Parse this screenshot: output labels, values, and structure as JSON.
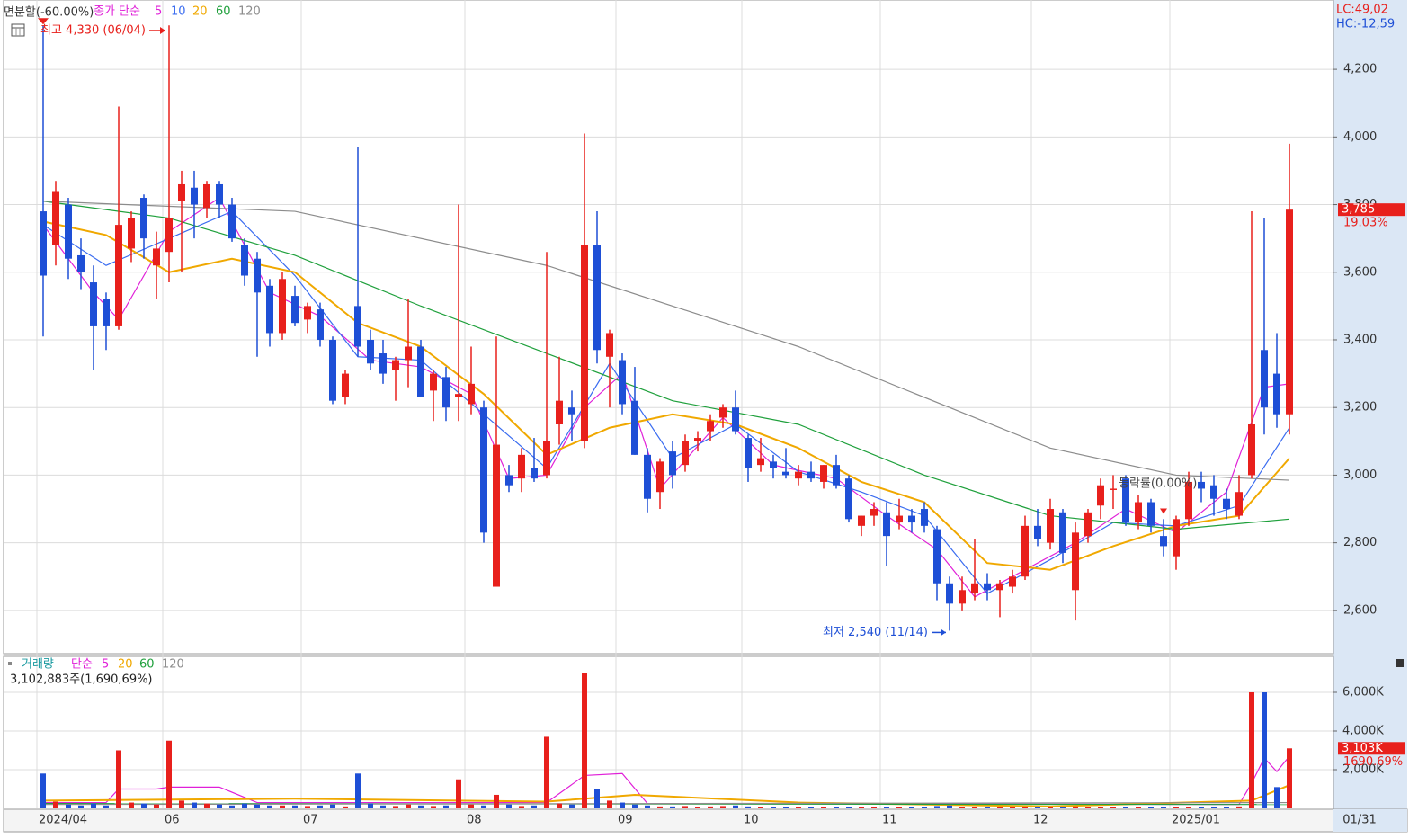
{
  "chart_data": {
    "type": "candlestick",
    "title": "면분할(-60.00%)",
    "legend_prefix": "종가 단순",
    "lc_label": "LC:49,02",
    "hc_label": "HC:-12,59",
    "high_label": "최고 4,330 (06/04)",
    "low_label": "최저 2,540 (11/14)",
    "annotation": "등락률(0.00%)",
    "last_price_label": "3,785",
    "change_label": "19.03%",
    "last_date": "01/31",
    "up_color": "#e8201c",
    "down_color": "#1e4fd6",
    "grid": true,
    "ylim": [
      2472,
      4405
    ],
    "yticks": [
      {
        "value": 2600,
        "label": "2,600"
      },
      {
        "value": 2800,
        "label": "2,800"
      },
      {
        "value": 3000,
        "label": "3,000"
      },
      {
        "value": 3200,
        "label": "3,200"
      },
      {
        "value": 3400,
        "label": "3,400"
      },
      {
        "value": 3600,
        "label": "3,600"
      },
      {
        "value": 3800,
        "label": "3,800"
      },
      {
        "value": 4000,
        "label": "4,000"
      },
      {
        "value": 4200,
        "label": "4,200"
      }
    ],
    "xticks": [
      {
        "value": 0,
        "label": "2024/04"
      },
      {
        "value": 10,
        "label": "06"
      },
      {
        "value": 21,
        "label": "07"
      },
      {
        "value": 34,
        "label": "08"
      },
      {
        "value": 46,
        "label": "09"
      },
      {
        "value": 56,
        "label": "10"
      },
      {
        "value": 67,
        "label": "11"
      },
      {
        "value": 79,
        "label": "12"
      },
      {
        "value": 90,
        "label": "2025/01"
      }
    ],
    "open": [
      3780,
      3680,
      3800,
      3650,
      3570,
      3520,
      3440,
      3670,
      3820,
      3620,
      3660,
      3810,
      3850,
      3790,
      3860,
      3800,
      3680,
      3640,
      3560,
      3420,
      3530,
      3460,
      3490,
      3400,
      3230,
      3500,
      3400,
      3360,
      3310,
      3340,
      3380,
      3250,
      3290,
      3230,
      3210,
      3200,
      2670,
      3000,
      2990,
      3020,
      3000,
      3150,
      3200,
      3100,
      3680,
      3350,
      3340,
      3220,
      3060,
      2950,
      3070,
      3030,
      3100,
      3130,
      3170,
      3200,
      3110,
      3030,
      3040,
      3010,
      2990,
      3010,
      2980,
      3030,
      2990,
      2850,
      2880,
      2890,
      2860,
      2880,
      2900,
      2840,
      2680,
      2620,
      2650,
      2680,
      2660,
      2670,
      2700,
      2850,
      2800,
      2890,
      2660,
      2820,
      2910,
      2960,
      2990,
      2860,
      2920,
      2820,
      2760,
      2870,
      2980,
      2970,
      2930,
      2880,
      3000,
      3370,
      3300,
      3180
    ],
    "high": [
      4330,
      3870,
      3820,
      3700,
      3620,
      3540,
      4090,
      3780,
      3830,
      3720,
      4330,
      3900,
      3900,
      3870,
      3870,
      3820,
      3700,
      3660,
      3580,
      3600,
      3560,
      3510,
      3510,
      3410,
      3310,
      3970,
      3430,
      3400,
      3350,
      3520,
      3400,
      3310,
      3320,
      3800,
      3380,
      3220,
      3410,
      3030,
      3080,
      3110,
      3660,
      3350,
      3250,
      4010,
      3780,
      3430,
      3360,
      3320,
      3080,
      3050,
      3100,
      3120,
      3130,
      3180,
      3210,
      3250,
      3120,
      3110,
      3060,
      3080,
      3030,
      3040,
      3030,
      3060,
      3000,
      2880,
      2920,
      2920,
      2930,
      2900,
      2920,
      2850,
      2700,
      2700,
      2810,
      2710,
      2690,
      2720,
      2880,
      2900,
      2930,
      2900,
      2860,
      2900,
      2990,
      3000,
      3000,
      2940,
      2930,
      2870,
      2880,
      3010,
      3010,
      3000,
      2960,
      3000,
      3780,
      3760,
      3420,
      3980
    ],
    "low": [
      3410,
      3620,
      3580,
      3550,
      3310,
      3370,
      3430,
      3630,
      3640,
      3520,
      3570,
      3600,
      3700,
      3760,
      3760,
      3690,
      3560,
      3350,
      3380,
      3400,
      3440,
      3420,
      3380,
      3210,
      3210,
      3350,
      3310,
      3270,
      3220,
      3260,
      3230,
      3160,
      3160,
      3160,
      3180,
      2800,
      2670,
      2950,
      2950,
      2980,
      2990,
      3090,
      3100,
      3080,
      3330,
      3200,
      3180,
      3060,
      2890,
      2900,
      2960,
      3010,
      3070,
      3100,
      3140,
      3120,
      2980,
      3010,
      2990,
      2990,
      2970,
      2980,
      2960,
      2960,
      2860,
      2820,
      2850,
      2730,
      2840,
      2830,
      2830,
      2630,
      2540,
      2600,
      2630,
      2630,
      2580,
      2650,
      2690,
      2790,
      2780,
      2740,
      2570,
      2800,
      2870,
      2900,
      2850,
      2840,
      2830,
      2760,
      2720,
      2850,
      2920,
      2880,
      2870,
      2870,
      2990,
      3120,
      3140,
      3120
    ],
    "close": [
      3590,
      3840,
      3640,
      3600,
      3440,
      3440,
      3740,
      3760,
      3700,
      3670,
      3760,
      3860,
      3800,
      3860,
      3800,
      3700,
      3590,
      3540,
      3420,
      3580,
      3450,
      3500,
      3400,
      3220,
      3300,
      3380,
      3330,
      3300,
      3340,
      3380,
      3230,
      3300,
      3200,
      3240,
      3270,
      2830,
      3090,
      2970,
      3060,
      2990,
      3100,
      3220,
      3180,
      3680,
      3370,
      3420,
      3210,
      3060,
      2930,
      3040,
      3000,
      3100,
      3110,
      3160,
      3200,
      3130,
      3020,
      3050,
      3020,
      3000,
      3010,
      2990,
      3030,
      2970,
      2870,
      2880,
      2900,
      2820,
      2880,
      2860,
      2850,
      2680,
      2620,
      2660,
      2680,
      2660,
      2680,
      2700,
      2850,
      2810,
      2900,
      2770,
      2830,
      2890,
      2970,
      2960,
      2860,
      2920,
      2850,
      2790,
      2870,
      2980,
      2960,
      2930,
      2900,
      2950,
      3150,
      3200,
      3180,
      3785
    ],
    "series": [
      {
        "name": "5",
        "color": "#e020d8",
        "x": [
          0,
          4,
          6,
          10,
          14,
          18,
          22,
          26,
          30,
          34,
          37,
          40,
          43,
          46,
          49,
          54,
          58,
          63,
          67,
          71,
          74,
          78,
          82,
          86,
          90,
          94,
          97,
          99
        ],
        "values": [
          3740,
          3540,
          3460,
          3720,
          3820,
          3540,
          3470,
          3340,
          3320,
          3240,
          2990,
          3000,
          3200,
          3300,
          2960,
          3170,
          3030,
          2990,
          2880,
          2780,
          2640,
          2720,
          2800,
          2900,
          2830,
          2950,
          3260,
          3270
        ]
      },
      {
        "name": "10",
        "color": "#3a6cf0",
        "x": [
          0,
          5,
          10,
          15,
          20,
          25,
          30,
          35,
          40,
          45,
          50,
          55,
          60,
          65,
          70,
          75,
          80,
          85,
          90,
          95,
          99
        ],
        "values": [
          3740,
          3620,
          3700,
          3780,
          3590,
          3350,
          3340,
          3180,
          3020,
          3330,
          3050,
          3150,
          3010,
          2950,
          2880,
          2650,
          2750,
          2860,
          2850,
          2910,
          3140
        ]
      },
      {
        "name": "20",
        "color": "#f0a800",
        "x": [
          0,
          5,
          10,
          15,
          20,
          25,
          30,
          35,
          40,
          45,
          50,
          55,
          60,
          65,
          70,
          75,
          80,
          85,
          90,
          95,
          99
        ],
        "values": [
          3750,
          3710,
          3600,
          3640,
          3600,
          3450,
          3380,
          3240,
          3060,
          3140,
          3180,
          3150,
          3080,
          2980,
          2920,
          2740,
          2720,
          2790,
          2850,
          2880,
          3050
        ]
      },
      {
        "name": "60",
        "color": "#1fa03c",
        "x": [
          0,
          10,
          20,
          30,
          40,
          50,
          60,
          70,
          80,
          90,
          99
        ],
        "values": [
          3810,
          3760,
          3650,
          3500,
          3360,
          3220,
          3150,
          3000,
          2880,
          2840,
          2870
        ]
      },
      {
        "name": "120",
        "color": "#8c8c8c",
        "x": [
          0,
          20,
          40,
          60,
          80,
          90,
          99
        ],
        "values": [
          3810,
          3780,
          3620,
          3380,
          3080,
          3000,
          2985
        ]
      }
    ],
    "volume": {
      "title": "거래량",
      "legend_prefix": "단순",
      "summary": "3,102,883주(1,690,69%)",
      "last_label": "3,103K",
      "ratio_label": "1690.69%",
      "ylim": [
        0,
        7860
      ],
      "yticks": [
        {
          "value": 2000,
          "label": "2,000K"
        },
        {
          "value": 4000,
          "label": "4,000K"
        },
        {
          "value": 6000,
          "label": "6,000K"
        }
      ],
      "values": [
        1800,
        350,
        200,
        150,
        250,
        150,
        3000,
        300,
        250,
        200,
        3500,
        400,
        300,
        250,
        200,
        150,
        250,
        200,
        150,
        150,
        150,
        120,
        150,
        200,
        100,
        1800,
        250,
        150,
        120,
        200,
        150,
        120,
        150,
        1500,
        200,
        150,
        700,
        200,
        120,
        150,
        3700,
        250,
        200,
        7000,
        1000,
        400,
        300,
        200,
        150,
        100,
        100,
        120,
        80,
        100,
        120,
        150,
        100,
        80,
        80,
        70,
        60,
        70,
        60,
        80,
        90,
        60,
        70,
        80,
        60,
        70,
        70,
        120,
        150,
        80,
        70,
        60,
        60,
        70,
        90,
        60,
        80,
        90,
        100,
        70,
        80,
        60,
        90,
        70,
        80,
        60,
        80,
        90,
        60,
        70,
        60,
        100,
        6000,
        6000,
        1100,
        3103
      ],
      "series": [
        {
          "name": "5",
          "color": "#e020d8",
          "x": [
            0,
            5,
            6,
            9,
            10,
            14,
            17,
            40,
            43,
            46,
            48,
            95,
            96,
            97,
            98,
            99
          ],
          "values": [
            300,
            300,
            1000,
            1000,
            1100,
            1100,
            300,
            300,
            1700,
            1800,
            250,
            200,
            1300,
            2600,
            1900,
            2700
          ]
        },
        {
          "name": "20",
          "color": "#f0a800",
          "x": [
            0,
            20,
            40,
            47,
            60,
            80,
            96,
            99
          ],
          "values": [
            400,
            500,
            350,
            700,
            300,
            100,
            400,
            1200
          ]
        },
        {
          "name": "60",
          "color": "#1fa03c",
          "x": [
            0,
            99
          ],
          "values": [
            250,
            200
          ]
        },
        {
          "name": "120",
          "color": "#8c8c8c",
          "x": [
            0,
            99
          ],
          "values": [
            200,
            300
          ]
        }
      ]
    }
  }
}
